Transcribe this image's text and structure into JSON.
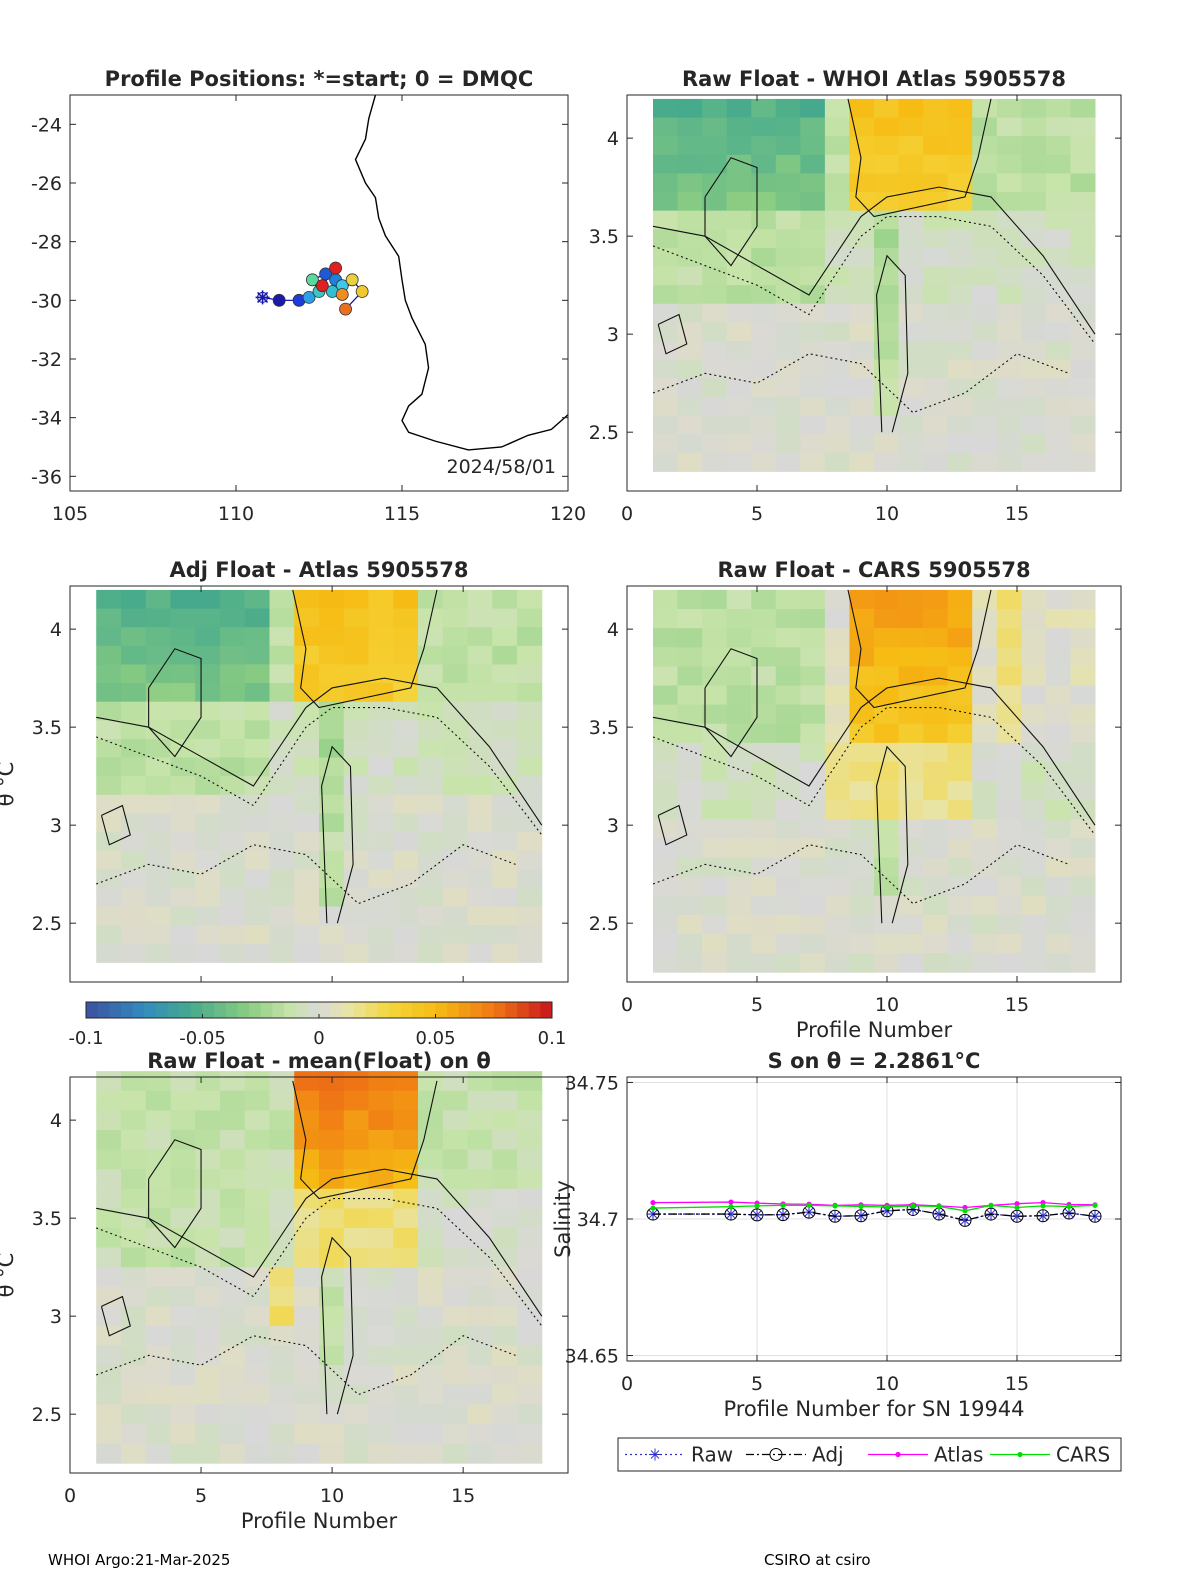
{
  "footer": {
    "left": "WHOI Argo:21-Mar-2025",
    "right": "CSIRO at csiro"
  },
  "colorbar": {
    "ticks": [
      -0.1,
      -0.05,
      0,
      0.05,
      0.1
    ],
    "tick_labels": [
      "-0.1",
      "-0.05",
      "0",
      "0.05",
      "0.1"
    ],
    "range": [
      -0.1,
      0.1
    ]
  },
  "chart_data": [
    {
      "type": "scatter",
      "id": "map",
      "title": "Profile Positions: *=start; 0 = DMQC",
      "xlim": [
        105,
        120
      ],
      "ylim": [
        -36.5,
        -23
      ],
      "xticks": [
        105,
        110,
        115,
        120
      ],
      "yticks": [
        -36,
        -34,
        -32,
        -30,
        -28,
        -26,
        -24
      ],
      "annotation": "2024/58/01",
      "start": {
        "lon": 110.8,
        "lat": -29.9
      },
      "track": [
        {
          "lon": 110.8,
          "lat": -29.9,
          "c": "#1a1aa8"
        },
        {
          "lon": 111.3,
          "lat": -30.0,
          "c": "#1a1aa8"
        },
        {
          "lon": 111.9,
          "lat": -30.0,
          "c": "#1e3cd8"
        },
        {
          "lon": 112.2,
          "lat": -29.9,
          "c": "#2ea0e8"
        },
        {
          "lon": 112.5,
          "lat": -29.7,
          "c": "#3cc8c0"
        },
        {
          "lon": 112.3,
          "lat": -29.3,
          "c": "#5ad8a0"
        },
        {
          "lon": 112.7,
          "lat": -29.1,
          "c": "#1e5ad8"
        },
        {
          "lon": 113.0,
          "lat": -29.3,
          "c": "#2080e0"
        },
        {
          "lon": 113.2,
          "lat": -29.5,
          "c": "#3cc8e8"
        },
        {
          "lon": 112.9,
          "lat": -29.7,
          "c": "#30c0d0"
        },
        {
          "lon": 112.6,
          "lat": -29.5,
          "c": "#e02020"
        },
        {
          "lon": 113.0,
          "lat": -28.9,
          "c": "#e02020"
        },
        {
          "lon": 113.2,
          "lat": -29.8,
          "c": "#f08c20"
        },
        {
          "lon": 113.5,
          "lat": -29.3,
          "c": "#e8d040"
        },
        {
          "lon": 113.8,
          "lat": -29.7,
          "c": "#f0c830"
        },
        {
          "lon": 113.3,
          "lat": -30.3,
          "c": "#e87020"
        }
      ]
    },
    {
      "type": "heatmap",
      "id": "p2",
      "title": "Raw Float - WHOI Atlas  5905578",
      "xlim": [
        0,
        19
      ],
      "ylim": [
        2.2,
        4.22
      ],
      "xticks": [
        0,
        5,
        10,
        15
      ],
      "yticks": [
        2.5,
        3,
        3.5,
        4
      ],
      "xlabel": "",
      "ylabel": "",
      "x": [
        1,
        18
      ],
      "y": [
        2.3,
        4.2
      ]
    },
    {
      "type": "heatmap",
      "id": "p3",
      "title": "Adj Float - Atlas  5905578",
      "xlim": [
        0,
        19
      ],
      "ylim": [
        2.2,
        4.22
      ],
      "xticks": [
        0,
        5,
        10,
        15
      ],
      "yticks": [
        2.5,
        3,
        3.5,
        4
      ],
      "xlabel": "",
      "ylabel": "θ °C",
      "x": [
        1,
        18
      ],
      "y": [
        2.3,
        4.2
      ]
    },
    {
      "type": "heatmap",
      "id": "p4",
      "title": "Raw Float - CARS  5905578",
      "xlim": [
        0,
        19
      ],
      "ylim": [
        2.2,
        4.22
      ],
      "xticks": [
        0,
        5,
        10,
        15
      ],
      "yticks": [
        2.5,
        3,
        3.5,
        4
      ],
      "xlabel": "Profile Number",
      "ylabel": "",
      "x": [
        1,
        18
      ],
      "y": [
        2.25,
        4.2
      ]
    },
    {
      "type": "heatmap",
      "id": "p5",
      "title": "Raw Float - mean(Float) on θ",
      "xlim": [
        0,
        19
      ],
      "ylim": [
        2.2,
        4.22
      ],
      "xticks": [
        0,
        5,
        10,
        15
      ],
      "yticks": [
        2.5,
        3,
        3.5,
        4
      ],
      "xlabel": "Profile Number",
      "ylabel": "θ °C",
      "x": [
        1,
        18
      ],
      "y": [
        2.25,
        4.25
      ]
    },
    {
      "type": "line",
      "id": "p6",
      "title": "S on θ = 2.2861°C",
      "xlim": [
        0,
        19
      ],
      "ylim": [
        34.648,
        34.752
      ],
      "xticks": [
        0,
        5,
        10,
        15
      ],
      "yticks": [
        34.65,
        34.7,
        34.75
      ],
      "ytick_labels": [
        "34.65",
        "34.7",
        "34.75"
      ],
      "xlabel": "Profile Number for SN 19944",
      "ylabel": "Salinity",
      "grid": true,
      "x": [
        1,
        4,
        5,
        6,
        7,
        8,
        9,
        10,
        11,
        12,
        13,
        14,
        15,
        16,
        17,
        18
      ],
      "series": [
        {
          "name": "Raw",
          "color": "#3333cc",
          "style": "dotted",
          "marker": "star",
          "values": [
            34.7018,
            34.7018,
            34.7015,
            34.7016,
            34.7025,
            34.701,
            34.7012,
            34.703,
            34.7035,
            34.7018,
            34.6995,
            34.7018,
            34.701,
            34.7012,
            34.7022,
            34.701
          ]
        },
        {
          "name": "Adj",
          "color": "#000000",
          "style": "dashdot",
          "marker": "circle",
          "values": [
            34.7018,
            34.7018,
            34.7015,
            34.7016,
            34.7025,
            34.701,
            34.7012,
            34.703,
            34.7035,
            34.7018,
            34.6995,
            34.7018,
            34.701,
            34.7012,
            34.7022,
            34.701
          ]
        },
        {
          "name": "Atlas",
          "color": "#ff00ff",
          "style": "solid",
          "marker": "dot",
          "values": [
            34.706,
            34.7062,
            34.7058,
            34.7055,
            34.7054,
            34.705,
            34.7052,
            34.705,
            34.7052,
            34.7048,
            34.7042,
            34.705,
            34.7056,
            34.706,
            34.7053,
            34.7052
          ]
        },
        {
          "name": "CARS",
          "color": "#00dd00",
          "style": "solid",
          "marker": "dot",
          "values": [
            34.704,
            34.7045,
            34.7048,
            34.705,
            34.705,
            34.7048,
            34.7046,
            34.7044,
            34.7048,
            34.7046,
            34.703,
            34.705,
            34.7042,
            34.7048,
            34.7046,
            34.705
          ]
        }
      ],
      "legend": "bottom-outside"
    }
  ]
}
